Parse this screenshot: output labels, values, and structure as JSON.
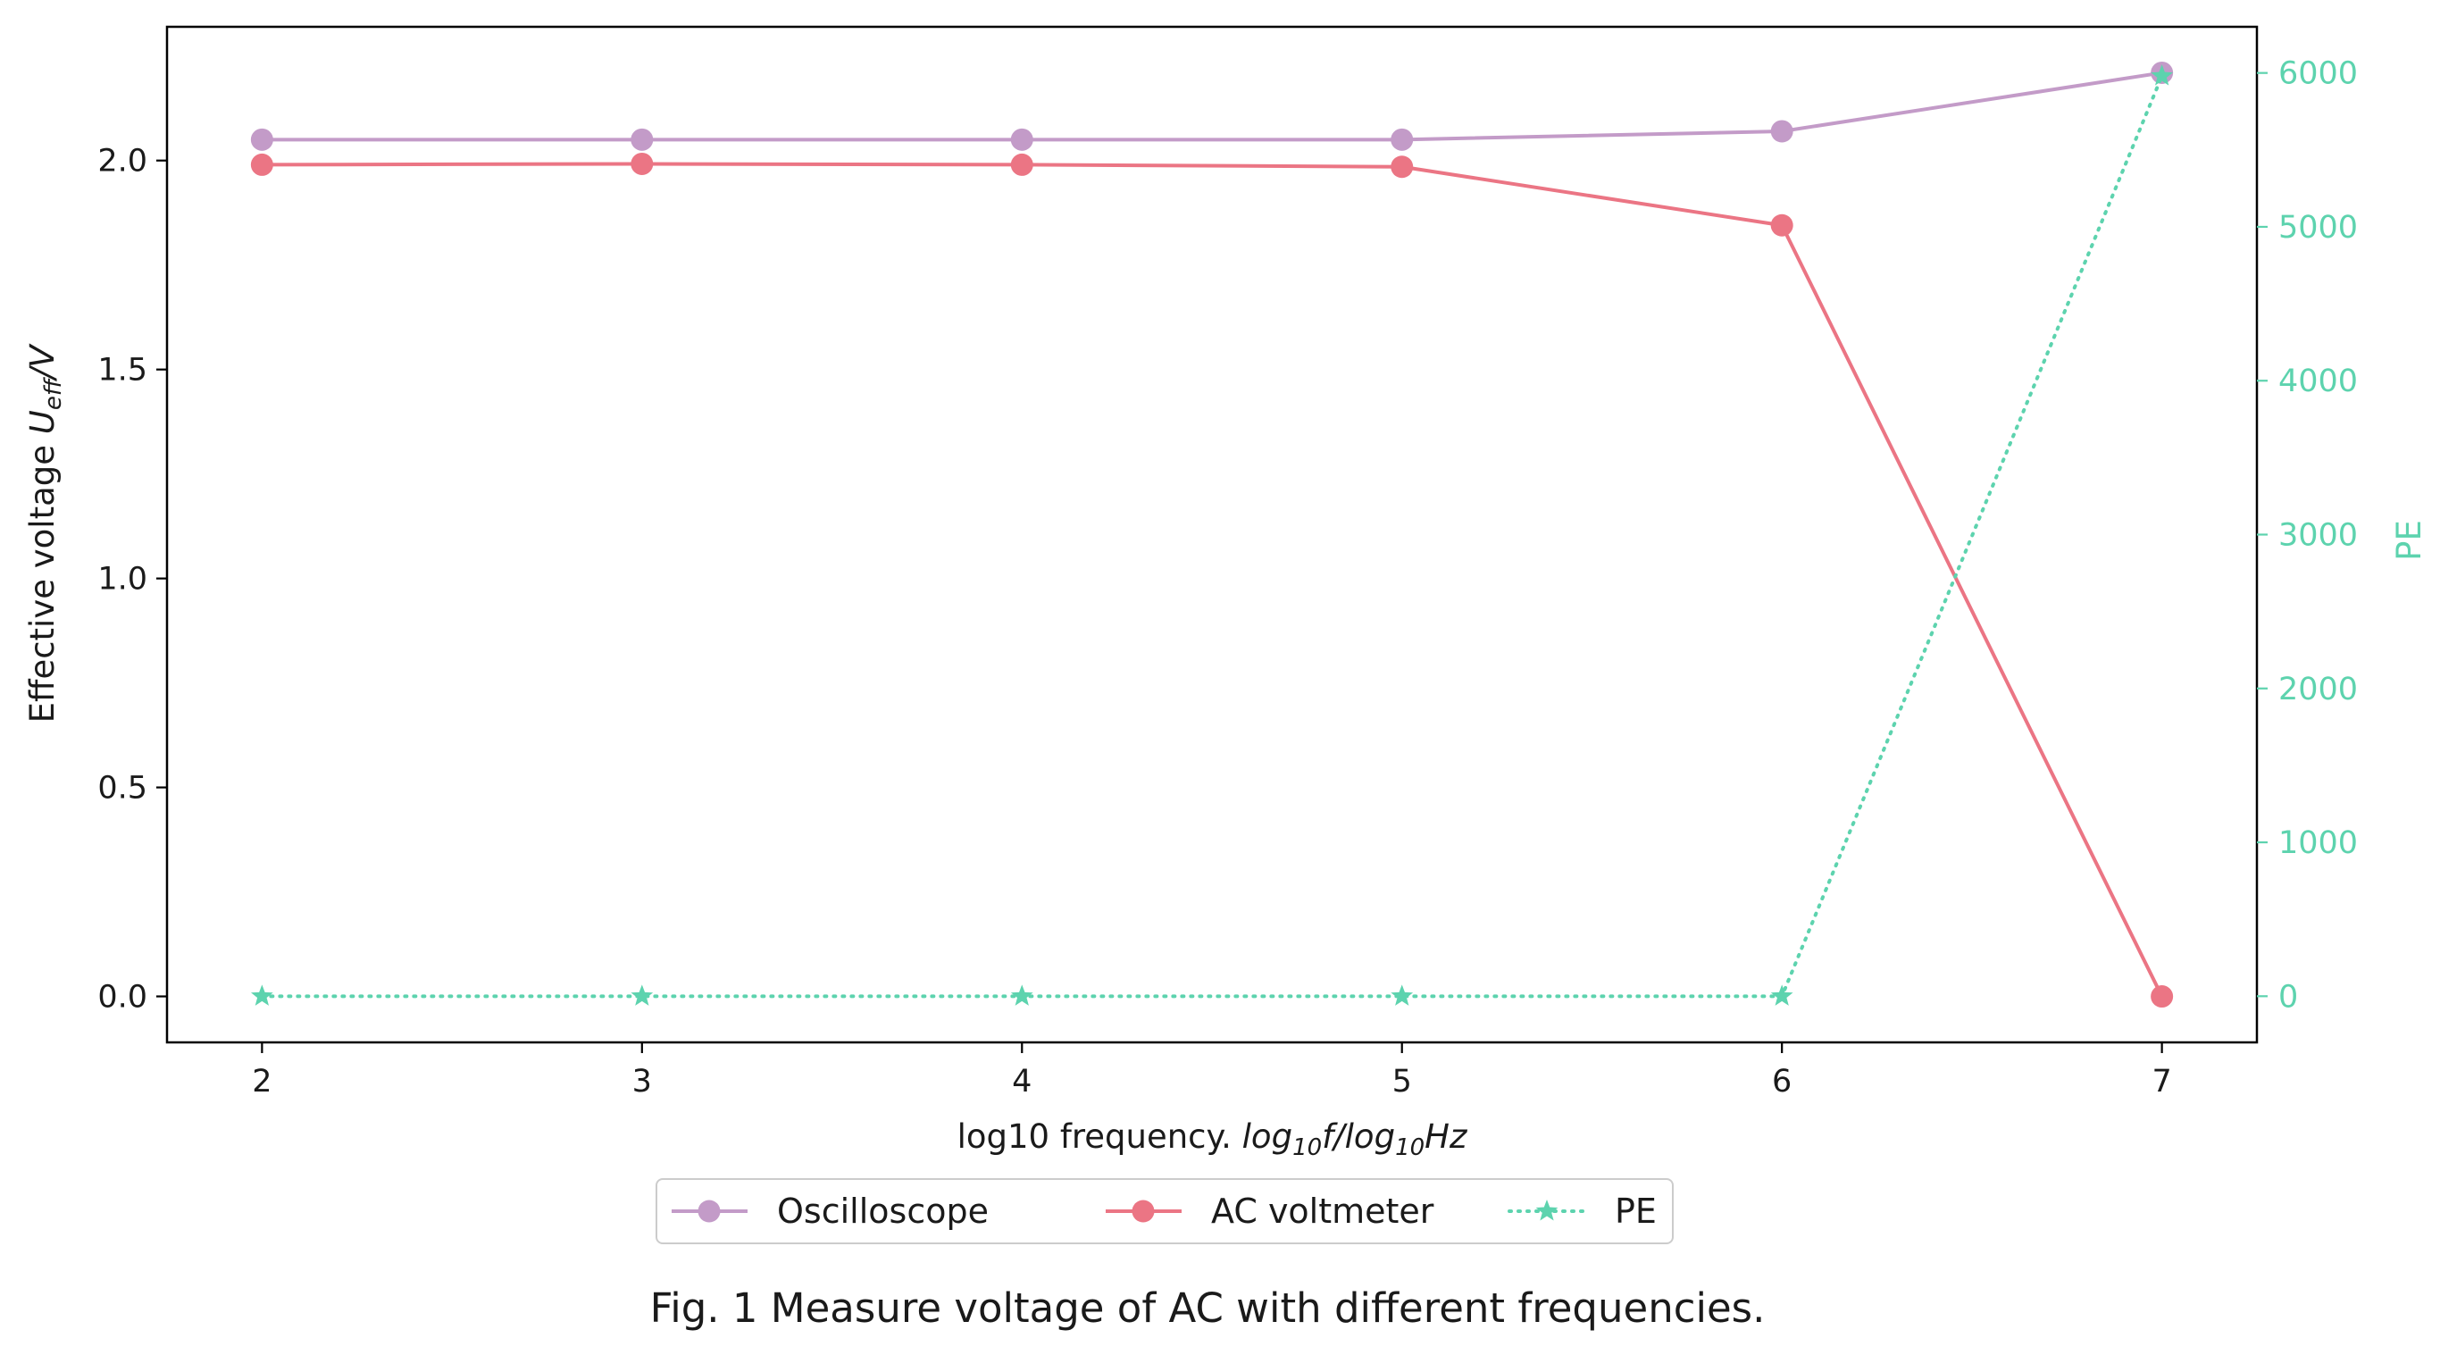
{
  "chart_data": {
    "type": "line",
    "x": [
      2,
      3,
      4,
      5,
      6,
      7
    ],
    "xticks": [
      "2",
      "3",
      "4",
      "5",
      "6",
      "7"
    ],
    "xlim": [
      1.75,
      7.25
    ],
    "xlabel": {
      "prefix": "log10 frequency. ",
      "italic": "log",
      "sub1": "10",
      "mid": "f/log",
      "sub2": "10",
      "end": "Hz"
    },
    "ylabel": {
      "prefix": "Effective voltage ",
      "italic": "U",
      "sub": "eff",
      "end": "/V"
    },
    "ylim": [
      -0.11,
      2.32
    ],
    "yticks": [
      "0.0",
      "0.5",
      "1.0",
      "1.5",
      "2.0"
    ],
    "y2label": "PE",
    "y2lim": [
      -300,
      6300
    ],
    "y2ticks": [
      "0",
      "1000",
      "2000",
      "3000",
      "4000",
      "5000",
      "6000"
    ],
    "series": [
      {
        "name": "Oscilloscope",
        "axis": "left",
        "color": "#c39bc8",
        "style": "solid",
        "marker": "circle",
        "values": [
          2.05,
          2.05,
          2.05,
          2.05,
          2.07,
          2.21
        ]
      },
      {
        "name": "AC voltmeter",
        "axis": "left",
        "color": "#eb7584",
        "style": "solid",
        "marker": "circle",
        "values": [
          1.99,
          1.992,
          1.99,
          1.985,
          1.845,
          0.0
        ]
      },
      {
        "name": "PE",
        "axis": "right",
        "color": "#5dd3ae",
        "style": "dotted",
        "marker": "star",
        "values": [
          0,
          0,
          0,
          0,
          0,
          5980
        ]
      }
    ],
    "legend_position": "bottom-center, outside plot",
    "grid": false,
    "caption": "Fig. 1 Measure voltage of AC with different frequencies."
  }
}
